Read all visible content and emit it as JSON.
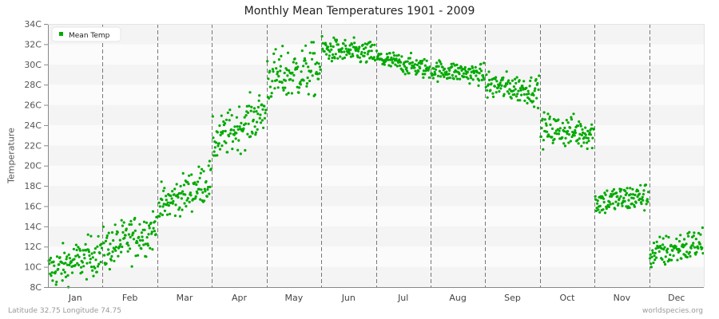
{
  "title": "Monthly Mean Temperatures 1901 - 2009",
  "y_axis_label": "Temperature",
  "legend": {
    "label": "Mean Temp",
    "color": "#00aa00"
  },
  "footer": {
    "location": "Latitude 32.75 Longitude 74.75",
    "source": "worldspecies.org"
  },
  "colors": {
    "point": "#00aa00",
    "band_dark": "#f4f4f4",
    "band_light": "#fbfbfb",
    "divider": "#777777",
    "axis": "#888888"
  },
  "chart_data": {
    "type": "scatter",
    "title": "Monthly Mean Temperatures 1901 - 2009",
    "xlabel": "",
    "ylabel": "Temperature",
    "ylim": [
      8,
      34
    ],
    "y_ticks": [
      "8C",
      "10C",
      "12C",
      "14C",
      "16C",
      "18C",
      "20C",
      "22C",
      "24C",
      "26C",
      "28C",
      "30C",
      "32C",
      "34C"
    ],
    "categories": [
      "Jan",
      "Feb",
      "Mar",
      "Apr",
      "May",
      "Jun",
      "Jul",
      "Aug",
      "Sep",
      "Oct",
      "Nov",
      "Dec"
    ],
    "legend": [
      "Mean Temp"
    ],
    "legend_position": "top-left",
    "grid": "alternating horizontal bands, dashed vertical month dividers",
    "years": [
      1901,
      2009
    ],
    "points_per_month": 109,
    "series": [
      {
        "name": "Mean Temp",
        "month_stats": [
          {
            "month": "Jan",
            "start_mean": 9.6,
            "end_mean": 11.4,
            "spread": 1.0,
            "min": 8.0,
            "max": 13.2
          },
          {
            "month": "Feb",
            "start_mean": 11.6,
            "end_mean": 13.8,
            "spread": 1.1,
            "min": 9.6,
            "max": 15.5
          },
          {
            "month": "Mar",
            "start_mean": 15.8,
            "end_mean": 18.6,
            "spread": 1.0,
            "min": 15.0,
            "max": 21.2
          },
          {
            "month": "Apr",
            "start_mean": 22.2,
            "end_mean": 25.4,
            "spread": 1.1,
            "min": 21.0,
            "max": 27.4
          },
          {
            "month": "May",
            "start_mean": 28.6,
            "end_mean": 29.6,
            "spread": 1.3,
            "min": 26.0,
            "max": 32.6
          },
          {
            "month": "Jun",
            "start_mean": 31.5,
            "end_mean": 31.0,
            "spread": 0.6,
            "min": 29.5,
            "max": 33.2
          },
          {
            "month": "Jul",
            "start_mean": 30.6,
            "end_mean": 29.5,
            "spread": 0.5,
            "min": 28.5,
            "max": 31.6
          },
          {
            "month": "Aug",
            "start_mean": 29.5,
            "end_mean": 29.0,
            "spread": 0.5,
            "min": 27.6,
            "max": 30.6
          },
          {
            "month": "Sep",
            "start_mean": 28.0,
            "end_mean": 27.4,
            "spread": 0.7,
            "min": 25.2,
            "max": 29.6
          },
          {
            "month": "Oct",
            "start_mean": 23.6,
            "end_mean": 23.2,
            "spread": 0.8,
            "min": 21.0,
            "max": 26.0
          },
          {
            "month": "Nov",
            "start_mean": 16.4,
            "end_mean": 17.0,
            "spread": 0.7,
            "min": 14.6,
            "max": 18.6
          },
          {
            "month": "Dec",
            "start_mean": 11.2,
            "end_mean": 12.4,
            "spread": 0.8,
            "min": 9.6,
            "max": 14.0
          }
        ]
      }
    ]
  }
}
